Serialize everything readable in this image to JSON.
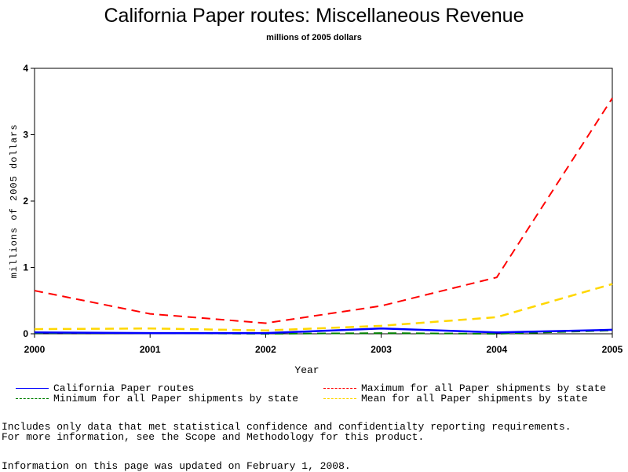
{
  "chart_data": {
    "type": "line",
    "title": "California Paper routes: Miscellaneous Revenue",
    "subtitle": "millions of 2005 dollars",
    "xlabel": "Year",
    "ylabel": "millions of 2005 dollars",
    "x": [
      "2000",
      "2001",
      "2002",
      "2003",
      "2004",
      "2005"
    ],
    "xlim": [
      2000,
      2005
    ],
    "ylim": [
      0,
      4
    ],
    "yticks": [
      "0",
      "1",
      "2",
      "3",
      "4"
    ],
    "grid": false,
    "legend_position": "bottom",
    "series": [
      {
        "name": "California Paper routes",
        "values": [
          0.02,
          0.01,
          0.01,
          0.08,
          0.02,
          0.06
        ],
        "color": "#0000ff",
        "dash": "solid",
        "width": 2.5
      },
      {
        "name": "Maximum for all Paper shipments by state",
        "values": [
          0.65,
          0.3,
          0.16,
          0.42,
          0.85,
          3.55
        ],
        "color": "#ff0000",
        "dash": "dashed",
        "width": 2
      },
      {
        "name": "Minimum for all Paper shipments by state",
        "values": [
          0.01,
          0.01,
          0.0,
          0.01,
          0.0,
          0.05
        ],
        "color": "#008000",
        "dash": "dashed",
        "width": 2
      },
      {
        "name": "Mean for all Paper shipments by state",
        "values": [
          0.07,
          0.08,
          0.05,
          0.12,
          0.25,
          0.75
        ],
        "color": "#ffd700",
        "dash": "dashed",
        "width": 2.5
      }
    ]
  },
  "legend": {
    "items": [
      {
        "label": "California Paper routes",
        "color": "#0000ff",
        "dash": "solid"
      },
      {
        "label": "Maximum for all Paper shipments by state",
        "color": "#ff0000",
        "dash": "dashed"
      },
      {
        "label": "Minimum for all Paper shipments by state",
        "color": "#008000",
        "dash": "dashed"
      },
      {
        "label": "Mean for all Paper shipments by state",
        "color": "#ffd700",
        "dash": "dashed"
      }
    ]
  },
  "notes": {
    "line1": "Includes only data that met statistical confidence and confidentialty reporting requirements.",
    "line2": "For more information, see the Scope and Methodology for this product.",
    "updated": "Information on this page was updated on February 1, 2008."
  }
}
